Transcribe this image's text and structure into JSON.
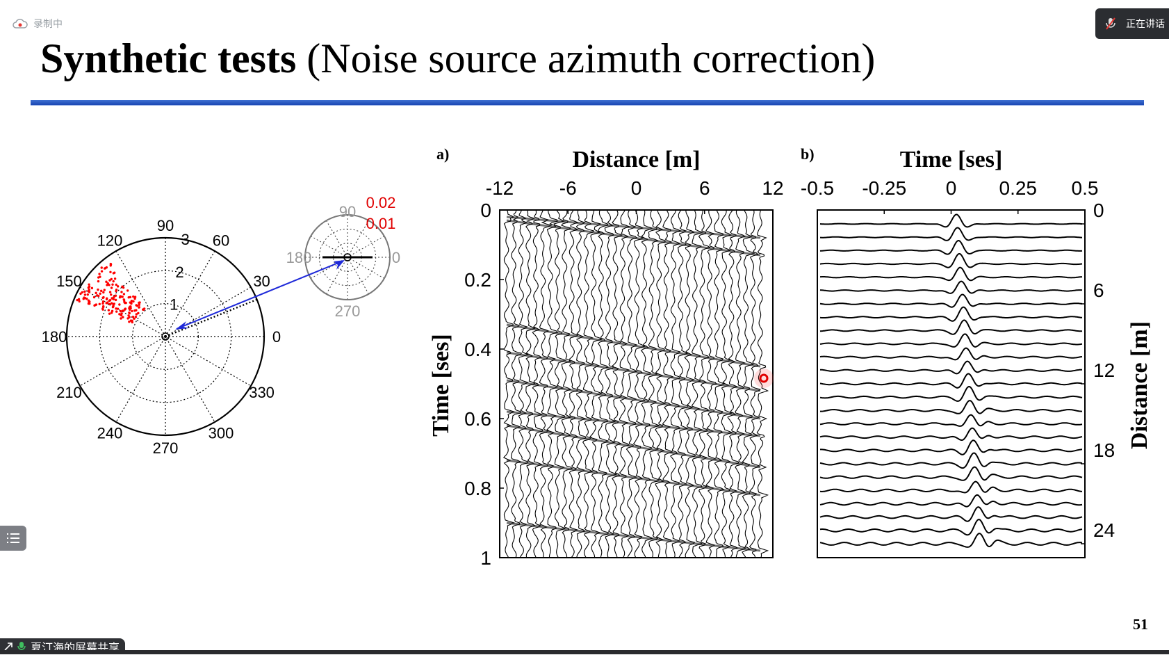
{
  "overlay": {
    "recording_label": "录制中",
    "speaking_label": "正在讲话",
    "share_label": "夏汀海的屏幕共享"
  },
  "slide": {
    "title_bold": "Synthetic tests",
    "title_rest": " (Noise source azimuth correction)",
    "page_number": "51"
  },
  "colors": {
    "accent": "#2255c4",
    "noise": "#ff0000",
    "arrow": "#1f2ad9"
  },
  "polar_main": {
    "angle_labels": [
      "0",
      "30",
      "60",
      "90",
      "120",
      "150",
      "180",
      "210",
      "240",
      "270",
      "300",
      "330"
    ],
    "radius_labels": [
      "1",
      "2",
      "3"
    ]
  },
  "polar_small": {
    "angle_labels": [
      "0",
      "90",
      "180",
      "270"
    ],
    "radius_labels": [
      "0.01",
      "0.02"
    ]
  },
  "chart_data": [
    {
      "type": "heatmap",
      "panel_label": "a)",
      "xlabel": "Distance   [m]",
      "ylabel": "Time   [ses]",
      "x_ticks": [
        "-12",
        "-6",
        "0",
        "6",
        "12"
      ],
      "y_ticks": [
        "0",
        "0.2",
        "0.4",
        "0.6",
        "0.8",
        "1"
      ],
      "xlim": [
        -12,
        12
      ],
      "ylim": [
        0,
        1
      ],
      "y_reversed": true,
      "x_axis_position": "top"
    },
    {
      "type": "line",
      "panel_label": "b)",
      "xlabel": "Time   [ses]",
      "ylabel": "Distance   [m]",
      "x_ticks": [
        "-0.5",
        "-0.25",
        "0",
        "0.25",
        "0.5"
      ],
      "y_ticks": [
        "0",
        "6",
        "12",
        "18",
        "24"
      ],
      "xlim": [
        -0.5,
        0.5
      ],
      "ylim": [
        0,
        24
      ],
      "y_reversed": true,
      "x_axis_position": "top",
      "y_axis_position": "right",
      "trace_count": 25
    }
  ]
}
